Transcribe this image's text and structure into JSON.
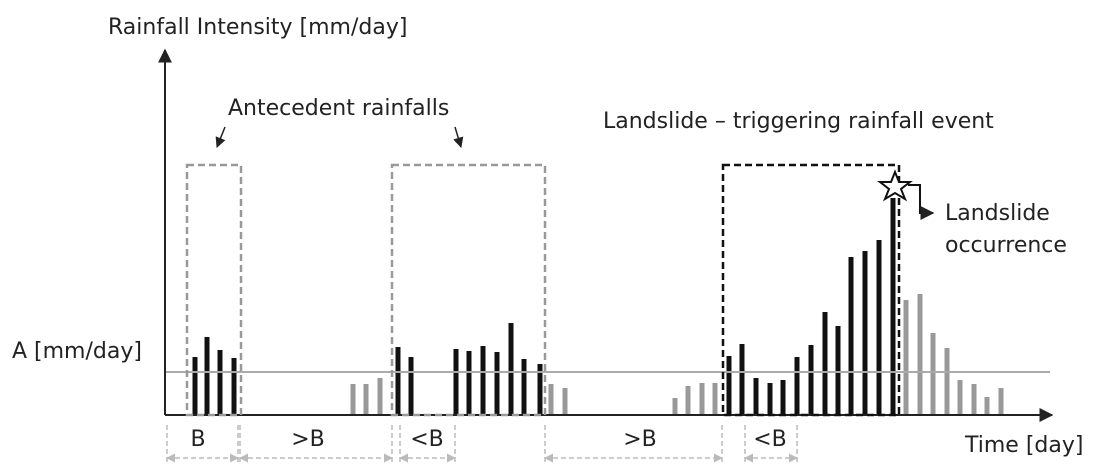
{
  "y_axis_label": "Rainfall Intensity [mm/day]",
  "x_axis_label": "Time [day]",
  "threshold_label": "A [mm/day]",
  "antecedent_label": "Antecedent rainfalls",
  "event_label": "Landslide – triggering rainfall event",
  "occurrence_label": [
    "Landslide",
    "occurrence"
  ],
  "intervals": [
    "B",
    ">B",
    "<B",
    ">B",
    "<B"
  ]
}
